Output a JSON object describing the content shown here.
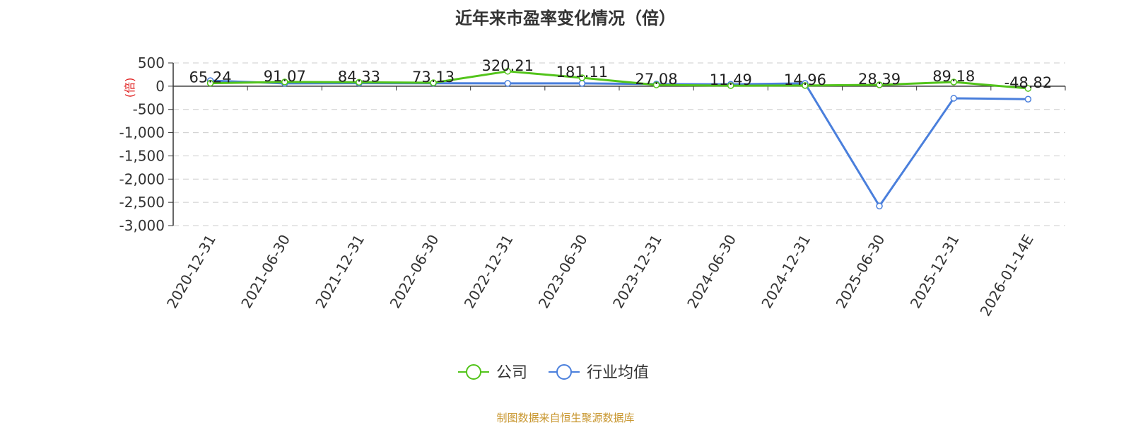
{
  "chart_data": {
    "type": "line",
    "title": "近年来市盈率变化情况（倍）",
    "ylabel": "(倍)",
    "categories": [
      "2020-12-31",
      "2021-06-30",
      "2021-12-31",
      "2022-06-30",
      "2022-12-31",
      "2023-06-30",
      "2023-12-31",
      "2024-06-30",
      "2024-12-31",
      "2025-06-30",
      "2025-12-31",
      "2026-01-14E"
    ],
    "ylim": [
      -3000,
      500
    ],
    "yticks": [
      500,
      0,
      -500,
      -1000,
      -1500,
      -2000,
      -2500,
      -3000
    ],
    "ytick_labels": [
      "500",
      "0",
      "-500",
      "-1,000",
      "-1,500",
      "-2,000",
      "-2,500",
      "-3,000"
    ],
    "grid": true,
    "legend_position": "bottom",
    "series": [
      {
        "name": "公司",
        "color": "#52c41a",
        "values": [
          65.24,
          91.07,
          84.33,
          73.13,
          320.21,
          181.11,
          27.08,
          11.49,
          14.96,
          28.39,
          89.18,
          -48.82
        ],
        "labels": [
          "65.24",
          "91.07",
          "84.33",
          "73.13",
          "320.21",
          "181.11",
          "27.08",
          "11.49",
          "14.96",
          "28.39",
          "89.18",
          "-48.82"
        ]
      },
      {
        "name": "行业均值",
        "color": "#4a7fdc",
        "values": [
          120,
          60,
          65,
          62,
          60,
          60,
          45,
          40,
          60,
          -2580,
          -260,
          -280
        ]
      }
    ]
  },
  "footer": {
    "source": "制图数据来自恒生聚源数据库",
    "source_color": "#c8962e"
  },
  "colors": {
    "axis": "#333333",
    "grid": "#cccccc",
    "ylabel": "#e02020"
  }
}
